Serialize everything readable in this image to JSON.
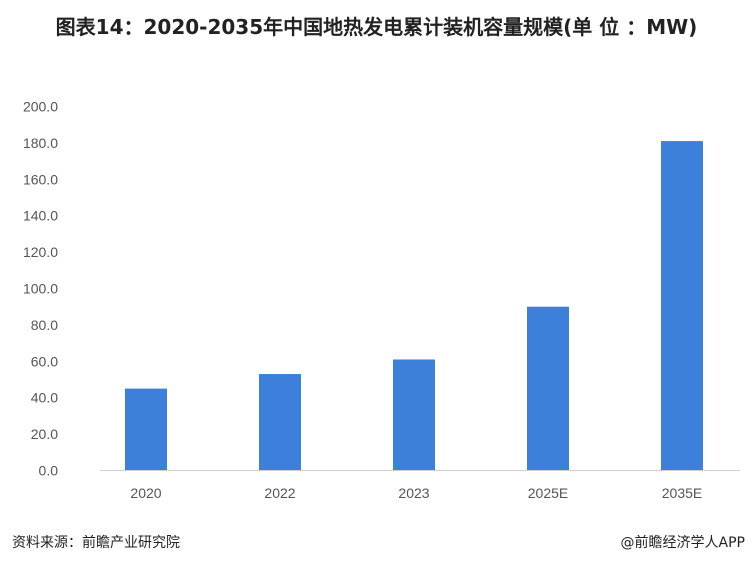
{
  "chart_data": {
    "type": "bar",
    "title": "图表14：2020-2035年中国地热发电累计装机容量规模(单 位 ：MW)",
    "categories": [
      "2020",
      "2022",
      "2023",
      "2025E",
      "2035E"
    ],
    "values": [
      45,
      53,
      61,
      90,
      181
    ],
    "ylim": [
      0,
      200
    ],
    "yticks": [
      "0.0",
      "20.0",
      "40.0",
      "60.0",
      "80.0",
      "100.0",
      "120.0",
      "140.0",
      "160.0",
      "180.0",
      "200.0"
    ],
    "xlabel": "",
    "ylabel": "",
    "grid": false,
    "bar_color": "#3d80dc"
  },
  "footer": {
    "source": "资料来源：前瞻产业研究院",
    "credit": "@前瞻经济学人APP"
  },
  "watermark": "前瞻产业研究院"
}
